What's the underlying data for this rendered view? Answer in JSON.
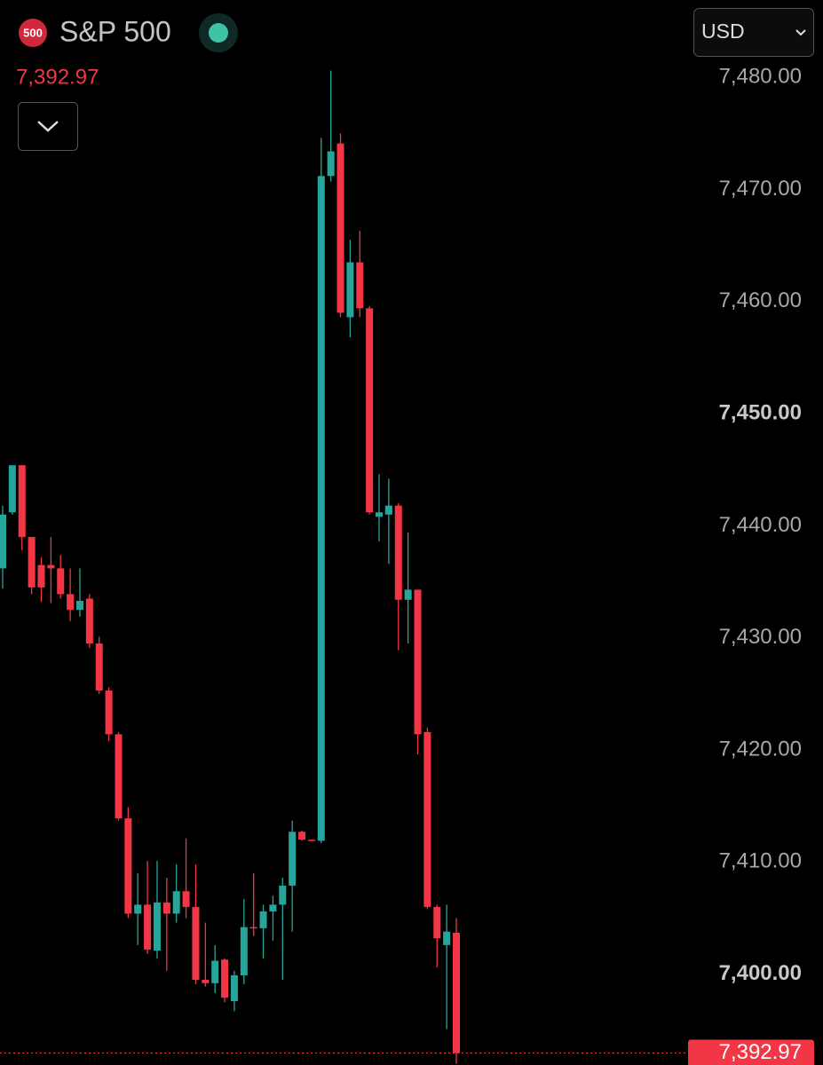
{
  "header": {
    "badge": "500",
    "symbol": "S&P 500",
    "currency": "USD"
  },
  "chart_data": {
    "type": "candlestick",
    "up_color": "#26a69a",
    "down_color": "#f23645",
    "last_price": {
      "value": 7392.97,
      "label": "7,392.97"
    },
    "ylim": [
      7391.9,
      7486.9
    ],
    "yticks": [
      {
        "value": 7400,
        "label": "7,400.00"
      },
      {
        "value": 7410,
        "label": "7,410.00"
      },
      {
        "value": 7420,
        "label": "7,420.00"
      },
      {
        "value": 7430,
        "label": "7,430.00"
      },
      {
        "value": 7440,
        "label": "7,440.00"
      },
      {
        "value": 7450,
        "label": "7,450.00"
      },
      {
        "value": 7460,
        "label": "7,460.00"
      },
      {
        "value": 7470,
        "label": "7,470.00"
      },
      {
        "value": 7480,
        "label": "7,480.00"
      }
    ],
    "open": [
      7436.2,
      7441.2,
      7445.4,
      7439.0,
      7436.5,
      7436.5,
      7436.2,
      7433.9,
      7432.5,
      7433.5,
      7429.5,
      7425.3,
      7421.4,
      7413.9,
      7405.4,
      7406.2,
      7402.1,
      7406.4,
      7405.4,
      7407.4,
      7406.0,
      7399.5,
      7399.2,
      7401.3,
      7397.6,
      7399.9,
      7404.2,
      7404.1,
      7405.6,
      7406.2,
      7407.9,
      7412.7,
      7412.0,
      7411.9,
      7471.2,
      7474.1,
      7458.6,
      7463.5,
      7459.4,
      7440.8,
      7441.0,
      7441.8,
      7433.4,
      7434.3,
      7421.6,
      7406.0,
      7402.6,
      7403.7
    ],
    "high": [
      7441.8,
      7445.4,
      7445.4,
      7439.0,
      7437.2,
      7439.0,
      7437.4,
      7436.2,
      7436.2,
      7433.9,
      7430.1,
      7425.6,
      7421.6,
      7414.9,
      7409.0,
      7410.1,
      7410.1,
      7408.6,
      7409.8,
      7412.1,
      7409.8,
      7404.6,
      7402.6,
      7401.4,
      7400.3,
      7406.7,
      7409.0,
      7406.2,
      7407.0,
      7408.6,
      7413.7,
      7412.8,
      7412.0,
      7474.6,
      7480.6,
      7475.0,
      7465.5,
      7466.3,
      7459.6,
      7444.6,
      7444.2,
      7442.0,
      7439.4,
      7434.3,
      7422.0,
      7406.2,
      7406.2,
      7405.0
    ],
    "low": [
      7434.4,
      7441.0,
      7437.8,
      7433.9,
      7433.2,
      7433.1,
      7433.5,
      7431.5,
      7431.9,
      7429.1,
      7425.0,
      7420.8,
      7413.7,
      7405.0,
      7402.6,
      7401.8,
      7401.4,
      7400.3,
      7404.6,
      7405.0,
      7399.1,
      7398.9,
      7398.3,
      7397.5,
      7396.7,
      7399.1,
      7403.4,
      7401.4,
      7403.0,
      7399.5,
      7403.8,
      7411.9,
      7411.9,
      7411.7,
      7470.7,
      7458.6,
      7456.8,
      7458.6,
      7441.0,
      7438.6,
      7436.6,
      7428.9,
      7429.5,
      7419.6,
      7405.8,
      7400.6,
      7395.1,
      7392.0
    ],
    "close": [
      7441.0,
      7445.4,
      7439.0,
      7434.5,
      7434.5,
      7436.2,
      7433.9,
      7432.5,
      7433.3,
      7429.5,
      7425.3,
      7421.4,
      7413.9,
      7405.4,
      7406.2,
      7402.2,
      7406.4,
      7405.4,
      7407.4,
      7406.0,
      7399.5,
      7399.2,
      7401.2,
      7397.9,
      7399.9,
      7404.2,
      7404.1,
      7405.6,
      7406.2,
      7407.9,
      7412.7,
      7412.0,
      7411.9,
      7471.2,
      7473.4,
      7459.0,
      7463.5,
      7459.4,
      7441.2,
      7441.2,
      7441.8,
      7433.4,
      7434.3,
      7421.4,
      7406.0,
      7403.2,
      7403.8,
      7392.97
    ]
  }
}
